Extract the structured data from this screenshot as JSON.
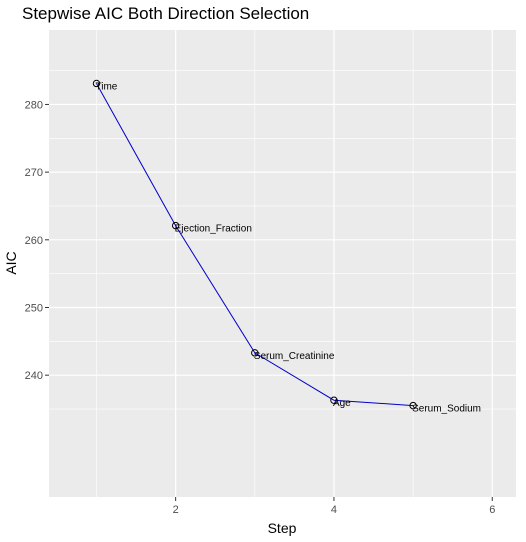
{
  "chart_data": {
    "type": "line",
    "title": "Stepwise AIC Both Direction Selection",
    "xlabel": "Step",
    "ylabel": "AIC",
    "xlim": [
      0.4,
      6.3
    ],
    "ylim": [
      222,
      291
    ],
    "x_ticks": [
      2,
      4,
      6
    ],
    "y_ticks": [
      240,
      250,
      260,
      270,
      280
    ],
    "grid": true,
    "legend": "none",
    "colors": {
      "line": "#0000cc",
      "point": "#000000",
      "panel": "#ebebeb",
      "grid": "#ffffff"
    },
    "points": [
      {
        "x": 1,
        "y": 283.1,
        "label": "Time"
      },
      {
        "x": 2,
        "y": 262.1,
        "label": "Ejection_Fraction"
      },
      {
        "x": 3,
        "y": 243.3,
        "label": "Serum_Creatinine"
      },
      {
        "x": 4,
        "y": 236.3,
        "label": "Age"
      },
      {
        "x": 5,
        "y": 235.5,
        "label": "Serum_Sodium"
      }
    ]
  }
}
